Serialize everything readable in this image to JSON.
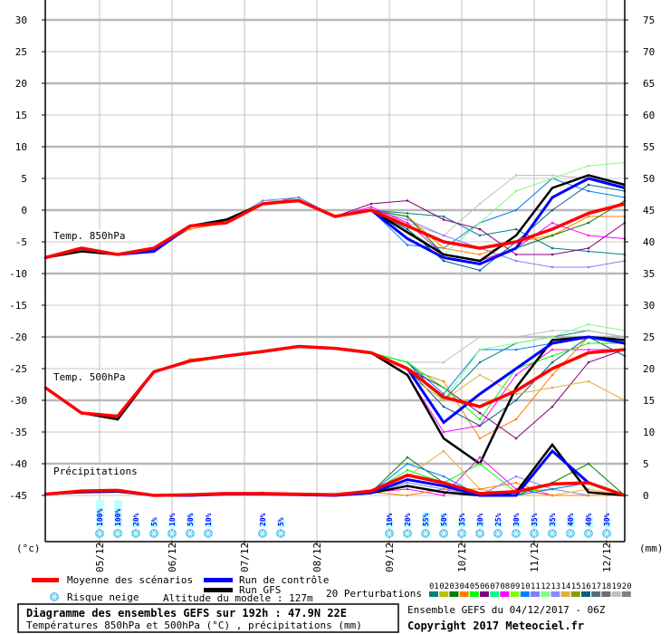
{
  "chart_data": {
    "type": "line",
    "title": "Diagramme des ensembles GEFS sur 192h : 47.9N 22E",
    "subtitle": "Températures 850hPa et 500hPa (°C) , précipitations (mm)",
    "run_label": "Ensemble GEFS du 04/12/2017 - 06Z",
    "copyright": "Copyright 2017 Meteociel.fr",
    "left_unit": "(°c)",
    "right_unit": "(mm)",
    "left_ticks": [
      "30",
      "25",
      "20",
      "15",
      "10",
      "5",
      "0",
      "-5",
      "-10",
      "-15",
      "-20",
      "-25",
      "-30",
      "-35",
      "-40",
      "-45"
    ],
    "right_ticks": [
      "75",
      "70",
      "65",
      "60",
      "55",
      "50",
      "45",
      "40",
      "35",
      "30",
      "25",
      "20",
      "15",
      "10",
      "5",
      "0"
    ],
    "left_range": [
      -45,
      30
    ],
    "right_range": [
      0,
      75
    ],
    "date_ticks": [
      "05/12",
      "06/12",
      "07/12",
      "08/12",
      "09/12",
      "10/12",
      "11/12",
      "12/12"
    ],
    "hours": [
      0,
      12,
      24,
      36,
      48,
      60,
      72,
      84,
      96,
      108,
      120,
      132,
      144,
      156,
      168,
      180,
      192
    ],
    "panel_labels": {
      "t850": "Temp. 850hPa",
      "t500": "Temp. 500hPa",
      "precip": "Précipitations"
    },
    "colors": {
      "mean": "#ff0000",
      "control": "#0000ff",
      "gfs": "#000000",
      "snow_bar": "#c0ffff",
      "snow_text": "#0000ff"
    },
    "t850": {
      "mean": [
        -7.5,
        -6,
        -7,
        -6,
        -2.5,
        -2,
        1,
        1.5,
        -1,
        0,
        -2.5,
        -5,
        -6,
        -5,
        -3,
        -0.5,
        1
      ],
      "control": [
        -7.5,
        -6,
        -7,
        -6.5,
        -2.5,
        -2,
        1,
        1.5,
        -1,
        0,
        -4.5,
        -7.5,
        -8.5,
        -6,
        2,
        5,
        3.5
      ],
      "gfs": [
        -7.5,
        -6.5,
        -7,
        -6,
        -2.5,
        -1.5,
        1,
        1.5,
        -1,
        0,
        -3.5,
        -7,
        -8,
        -4,
        3.5,
        5.5,
        4
      ],
      "perturbations": [
        {
          "id": "01",
          "values": [
            -7.5,
            -6,
            -7,
            -6,
            -2.5,
            -2,
            1,
            2,
            -1,
            0,
            -0.5,
            -1,
            -4,
            -3,
            -6,
            -6.5,
            -7
          ]
        },
        {
          "id": "10",
          "values": [
            -7.5,
            -6,
            -7,
            -6,
            -2.5,
            -2,
            1,
            1.5,
            -1,
            0,
            -5.5,
            -6,
            -2,
            0,
            5,
            3,
            2
          ]
        },
        {
          "id": "19",
          "values": [
            -7.5,
            -6,
            -7,
            -6,
            -2.5,
            -2,
            1.5,
            1.5,
            -1,
            0,
            -2,
            -4,
            1,
            5.5,
            5.5,
            5,
            4
          ]
        },
        {
          "id": "06",
          "values": [
            -7.5,
            -6,
            -7,
            -6,
            -2.5,
            -2,
            1,
            1.5,
            -1,
            1,
            1.5,
            -1.5,
            -3,
            -7,
            -7,
            -6,
            -2
          ]
        },
        {
          "id": "04",
          "values": [
            -7.5,
            -6,
            -7,
            -6,
            -3,
            -2,
            1,
            1.5,
            -1,
            0,
            -1,
            -6,
            -7,
            -5,
            -4,
            -1,
            -1
          ]
        },
        {
          "id": "12",
          "values": [
            -7.5,
            -6,
            -7,
            -6,
            -2.5,
            -2,
            1,
            1.5,
            -1,
            0,
            -3,
            -7,
            -2,
            3,
            5,
            7,
            7.5
          ]
        },
        {
          "id": "11",
          "values": [
            -7.5,
            -6,
            -7,
            -6,
            -2.5,
            -2,
            1.5,
            2,
            -1,
            0,
            -1.5,
            -4,
            -6,
            -8,
            -9,
            -9,
            -8
          ]
        },
        {
          "id": "03",
          "values": [
            -7.5,
            -6,
            -7,
            -6,
            -2.5,
            -2,
            1,
            1.5,
            -1,
            0,
            -1,
            -7,
            -8,
            -6,
            -4,
            -2,
            1.5
          ]
        },
        {
          "id": "16",
          "values": [
            -7.5,
            -6,
            -7,
            -6,
            -2.5,
            -2,
            1,
            1.5,
            -1,
            0,
            -3,
            -8,
            -9.5,
            -5,
            0,
            4,
            3
          ]
        },
        {
          "id": "08",
          "values": [
            -7.5,
            -6,
            -7,
            -6,
            -2.5,
            -2,
            1,
            1.5,
            -1,
            0.5,
            -2,
            -7,
            -8,
            -6,
            -2,
            -4,
            -4.5
          ]
        }
      ]
    },
    "t500": {
      "mean": [
        -28,
        -32,
        -32.5,
        -25.5,
        -23.8,
        -23,
        -22.3,
        -21.5,
        -21.8,
        -22.5,
        -25,
        -29.5,
        -31,
        -28.5,
        -25,
        -22.5,
        -22
      ],
      "control": [
        -28,
        -32,
        -32.5,
        -25.5,
        -23.8,
        -23,
        -22.3,
        -21.5,
        -21.8,
        -22.5,
        -25,
        -33.5,
        -29,
        -25,
        -21,
        -20,
        -21
      ],
      "gfs": [
        -28,
        -32,
        -33,
        -25.5,
        -23.8,
        -23,
        -22.3,
        -21.5,
        -21.8,
        -22.5,
        -26,
        -36,
        -40,
        -28,
        -20.5,
        -20,
        -20.5
      ],
      "perturbations": [
        {
          "id": "01",
          "values": [
            -28,
            -32,
            -32.5,
            -25.5,
            -23.8,
            -23,
            -22.3,
            -21.5,
            -21.8,
            -22.5,
            -24,
            -30,
            -24,
            -21,
            -20,
            -19,
            -20
          ]
        },
        {
          "id": "04",
          "values": [
            -28,
            -32,
            -33,
            -25.5,
            -23.5,
            -23,
            -22.3,
            -21.5,
            -21.8,
            -22.5,
            -25,
            -27,
            -36,
            -33,
            -26,
            -20,
            -21
          ]
        },
        {
          "id": "10",
          "values": [
            -28,
            -32,
            -32.5,
            -25.5,
            -23.8,
            -23,
            -22.3,
            -21.5,
            -21.8,
            -22.5,
            -24,
            -29,
            -22,
            -22,
            -21,
            -20,
            -21
          ]
        },
        {
          "id": "06",
          "values": [
            -28,
            -32,
            -32.5,
            -25.5,
            -23.8,
            -23,
            -22.3,
            -21.5,
            -21.8,
            -22.5,
            -25,
            -28,
            -32,
            -36,
            -31,
            -24,
            -22
          ]
        },
        {
          "id": "08",
          "values": [
            -28,
            -32,
            -32.5,
            -25.5,
            -23.8,
            -23,
            -22.3,
            -21.5,
            -21.8,
            -22.5,
            -26,
            -35,
            -34,
            -26,
            -22,
            -22,
            -22
          ]
        },
        {
          "id": "19",
          "values": [
            -28,
            -32,
            -32.5,
            -25.5,
            -23.8,
            -23,
            -22.3,
            -21.5,
            -21.8,
            -22.5,
            -24,
            -24,
            -20,
            -20,
            -19,
            -19,
            -20
          ]
        },
        {
          "id": "12",
          "values": [
            -28,
            -32,
            -32.5,
            -25.5,
            -23.8,
            -23,
            -22.3,
            -21.5,
            -21.8,
            -22.5,
            -25,
            -30,
            -22,
            -21,
            -20,
            -18,
            -19
          ]
        },
        {
          "id": "16",
          "values": [
            -28,
            -32,
            -32.5,
            -25.5,
            -23.8,
            -23,
            -22.3,
            -21.5,
            -21.8,
            -22.5,
            -25,
            -31,
            -34,
            -30,
            -24,
            -20,
            -23
          ]
        },
        {
          "id": "05",
          "values": [
            -28,
            -32,
            -32.5,
            -25.5,
            -23.8,
            -23,
            -22.3,
            -21.5,
            -21.8,
            -22.5,
            -24,
            -28,
            -33,
            -25,
            -23,
            -21,
            -21
          ]
        },
        {
          "id": "14",
          "values": [
            -28,
            -32,
            -32.5,
            -25.5,
            -23.8,
            -23,
            -22.3,
            -21.5,
            -21.8,
            -22.5,
            -26,
            -30,
            -26,
            -29,
            -28,
            -27,
            -30
          ]
        }
      ]
    },
    "precip": {
      "mean": [
        0.2,
        0.7,
        0.8,
        0,
        0.1,
        0.3,
        0.3,
        0.2,
        0.1,
        0.7,
        3.2,
        2.0,
        0.3,
        0.6,
        1.8,
        2.0,
        0
      ],
      "control": [
        0.2,
        0.6,
        0.7,
        0,
        0,
        0.2,
        0.2,
        0.1,
        0,
        0.4,
        2.5,
        1.5,
        0,
        0,
        7,
        2,
        0
      ],
      "gfs": [
        0.2,
        0.5,
        0.6,
        0,
        0,
        0.2,
        0.2,
        0.1,
        0,
        0.4,
        1.5,
        0.5,
        0,
        0.5,
        8,
        0.5,
        0
      ],
      "perturbations": [
        {
          "id": "03",
          "values": [
            0.2,
            0.7,
            0.8,
            0,
            0.1,
            0.3,
            0.4,
            0.1,
            0.1,
            0.5,
            6,
            2,
            0,
            0,
            2,
            5,
            0
          ]
        },
        {
          "id": "05",
          "values": [
            0.2,
            0.7,
            0.8,
            0,
            0.1,
            0.3,
            0.4,
            0.1,
            0.1,
            0.5,
            4,
            2,
            5,
            0.5,
            1,
            2,
            0
          ]
        },
        {
          "id": "08",
          "values": [
            0.2,
            0.7,
            0.8,
            0,
            0.1,
            0.3,
            0.4,
            0.1,
            0.1,
            0.5,
            1,
            0,
            6,
            1,
            0,
            0,
            0
          ]
        },
        {
          "id": "11",
          "values": [
            0.2,
            0.7,
            0.8,
            0,
            0.1,
            0.3,
            0.4,
            0.1,
            0.1,
            0.5,
            2,
            1,
            0,
            3,
            1,
            0,
            0
          ]
        },
        {
          "id": "14",
          "values": [
            0.2,
            0.7,
            0.8,
            0,
            0.1,
            0.3,
            0.4,
            0.1,
            0.1,
            0.5,
            3,
            7,
            1,
            0,
            0,
            1,
            0
          ]
        },
        {
          "id": "04",
          "values": [
            0.2,
            0.7,
            0.8,
            0,
            0.1,
            0.3,
            0.4,
            0.1,
            0.1,
            0.5,
            0,
            1,
            1,
            2,
            0,
            0,
            0
          ]
        },
        {
          "id": "10",
          "values": [
            0.2,
            0.7,
            0.8,
            0,
            0.1,
            0.3,
            0.4,
            0.1,
            0.1,
            0.5,
            5,
            3,
            0,
            0,
            1,
            2,
            0
          ]
        }
      ]
    },
    "snow_risk": [
      {
        "hour": 18,
        "label": "100%",
        "value": 100
      },
      {
        "hour": 24,
        "label": "100%",
        "value": 100
      },
      {
        "hour": 30,
        "label": "20%",
        "value": 20
      },
      {
        "hour": 36,
        "label": "5%",
        "value": 5
      },
      {
        "hour": 42,
        "label": "10%",
        "value": 10
      },
      {
        "hour": 48,
        "label": "50%",
        "value": 50
      },
      {
        "hour": 54,
        "label": "10%",
        "value": 10
      },
      {
        "hour": 72,
        "label": "20%",
        "value": 20
      },
      {
        "hour": 78,
        "label": "5%",
        "value": 5
      },
      {
        "hour": 114,
        "label": "10%",
        "value": 10
      },
      {
        "hour": 120,
        "label": "20%",
        "value": 20
      },
      {
        "hour": 126,
        "label": "55%",
        "value": 55
      },
      {
        "hour": 132,
        "label": "50%",
        "value": 50
      },
      {
        "hour": 138,
        "label": "35%",
        "value": 35
      },
      {
        "hour": 144,
        "label": "30%",
        "value": 30
      },
      {
        "hour": 150,
        "label": "25%",
        "value": 25
      },
      {
        "hour": 156,
        "label": "30%",
        "value": 30
      },
      {
        "hour": 162,
        "label": "35%",
        "value": 35
      },
      {
        "hour": 168,
        "label": "35%",
        "value": 35
      },
      {
        "hour": 174,
        "label": "40%",
        "value": 40
      },
      {
        "hour": 180,
        "label": "40%",
        "value": 40
      },
      {
        "hour": 186,
        "label": "30%",
        "value": 30
      }
    ],
    "legend": {
      "mean": "Moyenne des scénarios",
      "control": "Run de contrôle",
      "gfs": "Run GFS",
      "snow": "Risque neige",
      "altitude": "Altitude du modele : 127m",
      "perturbations_label": "20 Perturbations",
      "perturbations": [
        {
          "id": "01",
          "color": "#008080"
        },
        {
          "id": "02",
          "color": "#c0c000"
        },
        {
          "id": "03",
          "color": "#008000"
        },
        {
          "id": "04",
          "color": "#ff8000"
        },
        {
          "id": "05",
          "color": "#00ff00"
        },
        {
          "id": "06",
          "color": "#800080"
        },
        {
          "id": "07",
          "color": "#00ff80"
        },
        {
          "id": "08",
          "color": "#ff00ff"
        },
        {
          "id": "09",
          "color": "#80ff00"
        },
        {
          "id": "10",
          "color": "#0080ff"
        },
        {
          "id": "11",
          "color": "#8080ff"
        },
        {
          "id": "12",
          "color": "#80ff80"
        },
        {
          "id": "13",
          "color": "#8888ff"
        },
        {
          "id": "14",
          "color": "#e0b040"
        },
        {
          "id": "15",
          "color": "#80a000"
        },
        {
          "id": "16",
          "color": "#006080"
        },
        {
          "id": "17",
          "color": "#507078"
        },
        {
          "id": "18",
          "color": "#786870"
        },
        {
          "id": "19",
          "color": "#c0c0c0"
        },
        {
          "id": "20",
          "color": "#808080"
        }
      ]
    }
  }
}
